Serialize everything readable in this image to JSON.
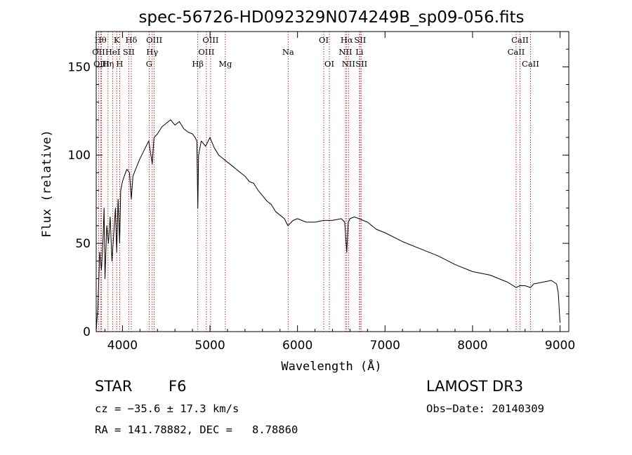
{
  "chart_data": {
    "type": "line",
    "title": "spec-56726-HD092329N074249B_sp09-056.fits",
    "xlabel": "Wavelength (Å)",
    "ylabel": "Flux (relative)",
    "xlim": [
      3700,
      9100
    ],
    "ylim": [
      0,
      170
    ],
    "xticks": [
      4000,
      5000,
      6000,
      7000,
      8000,
      9000
    ],
    "yticks": [
      0,
      50,
      100,
      150
    ],
    "grid": false,
    "series": [
      {
        "name": "spectrum",
        "x": [
          3700,
          3720,
          3740,
          3760,
          3780,
          3790,
          3800,
          3820,
          3840,
          3860,
          3880,
          3900,
          3920,
          3934,
          3950,
          3968,
          3980,
          4000,
          4020,
          4050,
          4080,
          4101,
          4120,
          4150,
          4200,
          4250,
          4300,
          4340,
          4360,
          4400,
          4450,
          4500,
          4550,
          4600,
          4650,
          4700,
          4750,
          4800,
          4830,
          4850,
          4861,
          4870,
          4900,
          4950,
          5000,
          5050,
          5100,
          5150,
          5200,
          5250,
          5300,
          5350,
          5400,
          5450,
          5500,
          5550,
          5600,
          5650,
          5700,
          5750,
          5800,
          5850,
          5890,
          5950,
          6000,
          6100,
          6200,
          6300,
          6400,
          6500,
          6540,
          6563,
          6580,
          6600,
          6650,
          6700,
          6800,
          6900,
          7000,
          7200,
          7400,
          7600,
          7800,
          8000,
          8200,
          8400,
          8498,
          8542,
          8600,
          8662,
          8700,
          8800,
          8900,
          8960,
          8980,
          9000
        ],
        "values": [
          0,
          15,
          45,
          35,
          55,
          70,
          30,
          60,
          50,
          65,
          40,
          55,
          70,
          45,
          75,
          50,
          80,
          85,
          88,
          92,
          90,
          75,
          88,
          92,
          98,
          103,
          108,
          95,
          110,
          112,
          116,
          118,
          120,
          117,
          119,
          115,
          113,
          112,
          110,
          108,
          70,
          100,
          108,
          105,
          110,
          104,
          100,
          98,
          96,
          94,
          92,
          90,
          88,
          85,
          84,
          80,
          77,
          74,
          72,
          68,
          66,
          64,
          60,
          63,
          64,
          62,
          62,
          63,
          63,
          64,
          62,
          45,
          62,
          64,
          65,
          64,
          62,
          58,
          56,
          51,
          47,
          43,
          38,
          34,
          32,
          28,
          25,
          26,
          26,
          25,
          27,
          28,
          29,
          27,
          22,
          5
        ]
      }
    ],
    "lines": [
      {
        "name": "HB",
        "wl": 3750,
        "label": "Hθ",
        "row": 1
      },
      {
        "name": "OII",
        "wl": 3727,
        "label": "OII",
        "row": 2
      },
      {
        "name": "OIII",
        "wl": 3760,
        "label": "OIII",
        "row": 3
      },
      {
        "name": "Hη",
        "wl": 3835,
        "label": "Hη",
        "row": 3
      },
      {
        "name": "K",
        "wl": 3934,
        "label": "K",
        "row": 1
      },
      {
        "name": "H",
        "wl": 3968,
        "label": "H",
        "row": 3
      },
      {
        "name": "HeI",
        "wl": 3889,
        "label": "HeI",
        "row": 2
      },
      {
        "name": "SII",
        "wl": 4072,
        "label": "SII",
        "row": 2
      },
      {
        "name": "Hδ",
        "wl": 4101,
        "label": "Hδ",
        "row": 1
      },
      {
        "name": "G",
        "wl": 4305,
        "label": "G",
        "row": 3
      },
      {
        "name": "Hγ",
        "wl": 4340,
        "label": "Hγ",
        "row": 2
      },
      {
        "name": "OIII",
        "wl": 4363,
        "label": "OIII",
        "row": 1
      },
      {
        "name": "Hβ",
        "wl": 4861,
        "label": "Hβ",
        "row": 3
      },
      {
        "name": "OIII",
        "wl": 4959,
        "label": "OIII",
        "row": 2
      },
      {
        "name": "OIII",
        "wl": 5007,
        "label": "OIII",
        "row": 1
      },
      {
        "name": "Mg",
        "wl": 5175,
        "label": "Mg",
        "row": 3
      },
      {
        "name": "Na",
        "wl": 5893,
        "label": "Na",
        "row": 2
      },
      {
        "name": "OI",
        "wl": 6300,
        "label": "OI",
        "row": 1
      },
      {
        "name": "OI",
        "wl": 6364,
        "label": "OI",
        "row": 3
      },
      {
        "name": "NII",
        "wl": 6548,
        "label": "NII",
        "row": 2
      },
      {
        "name": "Hα",
        "wl": 6563,
        "label": "Hα",
        "row": 1
      },
      {
        "name": "NII",
        "wl": 6583,
        "label": "NII",
        "row": 3
      },
      {
        "name": "SII",
        "wl": 6716,
        "label": "SII",
        "row": 1
      },
      {
        "name": "Li",
        "wl": 6708,
        "label": "Li",
        "row": 2
      },
      {
        "name": "SII",
        "wl": 6731,
        "label": "SII",
        "row": 3
      },
      {
        "name": "CaII",
        "wl": 8498,
        "label": "CaII",
        "row": 2
      },
      {
        "name": "CaII",
        "wl": 8542,
        "label": "CaII",
        "row": 1
      },
      {
        "name": "CaII",
        "wl": 8662,
        "label": "CaII",
        "row": 3
      }
    ],
    "colors": {
      "line": "#000000",
      "marker": "#b00000"
    }
  },
  "info": {
    "class": "STAR",
    "subclass": "F6",
    "survey": "LAMOST DR3",
    "cz": "cz = −35.6 ± 17.3 km/s",
    "obs_date": "Obs−Date: 20140309",
    "radec": "RA = 141.78882, DEC =   8.78860"
  }
}
